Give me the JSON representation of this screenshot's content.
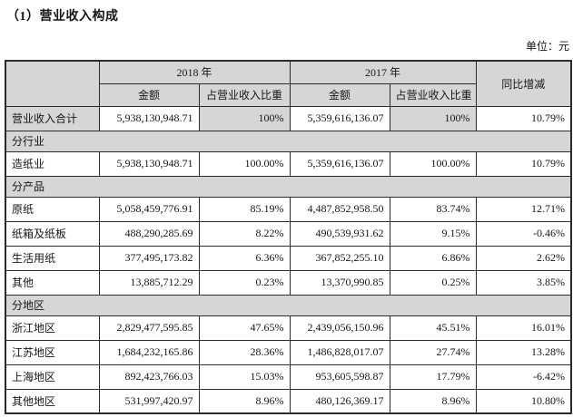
{
  "page": {
    "title": "（1）营业收入构成",
    "unit_label": "单位：元"
  },
  "colors": {
    "cell_shading": "#d6d6d6",
    "border": "#2b2b2b",
    "text": "#161616",
    "background": "#ffffff"
  },
  "table": {
    "header": {
      "year_2018": "2018 年",
      "year_2017": "2017 年",
      "yoy": "同比增减",
      "amount_2018": "金额",
      "pct_2018": "占营业收入比重",
      "amount_2017": "金额",
      "pct_2017": "占营业收入比重"
    },
    "rows": [
      {
        "type": "data",
        "highlight": true,
        "label": "营业收入合计",
        "a2018": "5,938,130,948.71",
        "p2018": "100%",
        "a2017": "5,359,616,136.07",
        "p2017": "100%",
        "yoy": "10.79%"
      },
      {
        "type": "section",
        "label": "分行业"
      },
      {
        "type": "data",
        "highlight": false,
        "label": "造纸业",
        "a2018": "5,938,130,948.71",
        "p2018": "100.00%",
        "a2017": "5,359,616,136.07",
        "p2017": "100.00%",
        "yoy": "10.79%"
      },
      {
        "type": "section",
        "label": "分产品"
      },
      {
        "type": "data",
        "highlight": false,
        "label": "原纸",
        "a2018": "5,058,459,776.91",
        "p2018": "85.19%",
        "a2017": "4,487,852,958.50",
        "p2017": "83.74%",
        "yoy": "12.71%"
      },
      {
        "type": "data",
        "highlight": false,
        "label": "纸箱及纸板",
        "a2018": "488,290,285.69",
        "p2018": "8.22%",
        "a2017": "490,539,931.62",
        "p2017": "9.15%",
        "yoy": "-0.46%"
      },
      {
        "type": "data",
        "highlight": false,
        "label": "生活用纸",
        "a2018": "377,495,173.82",
        "p2018": "6.36%",
        "a2017": "367,852,255.10",
        "p2017": "6.86%",
        "yoy": "2.62%"
      },
      {
        "type": "data",
        "highlight": false,
        "label": "其他",
        "a2018": "13,885,712.29",
        "p2018": "0.23%",
        "a2017": "13,370,990.85",
        "p2017": "0.25%",
        "yoy": "3.85%"
      },
      {
        "type": "section",
        "label": "分地区"
      },
      {
        "type": "data",
        "highlight": false,
        "label": "浙江地区",
        "a2018": "2,829,477,595.85",
        "p2018": "47.65%",
        "a2017": "2,439,056,150.96",
        "p2017": "45.51%",
        "yoy": "16.01%"
      },
      {
        "type": "data",
        "highlight": false,
        "label": "江苏地区",
        "a2018": "1,684,232,165.86",
        "p2018": "28.36%",
        "a2017": "1,486,828,017.07",
        "p2017": "27.74%",
        "yoy": "13.28%"
      },
      {
        "type": "data",
        "highlight": false,
        "label": "上海地区",
        "a2018": "892,423,766.03",
        "p2018": "15.03%",
        "a2017": "953,605,598.87",
        "p2017": "17.79%",
        "yoy": "-6.42%"
      },
      {
        "type": "data",
        "highlight": false,
        "label": "其他地区",
        "a2018": "531,997,420.97",
        "p2018": "8.96%",
        "a2017": "480,126,369.17",
        "p2017": "8.96%",
        "yoy": "10.80%"
      }
    ]
  }
}
